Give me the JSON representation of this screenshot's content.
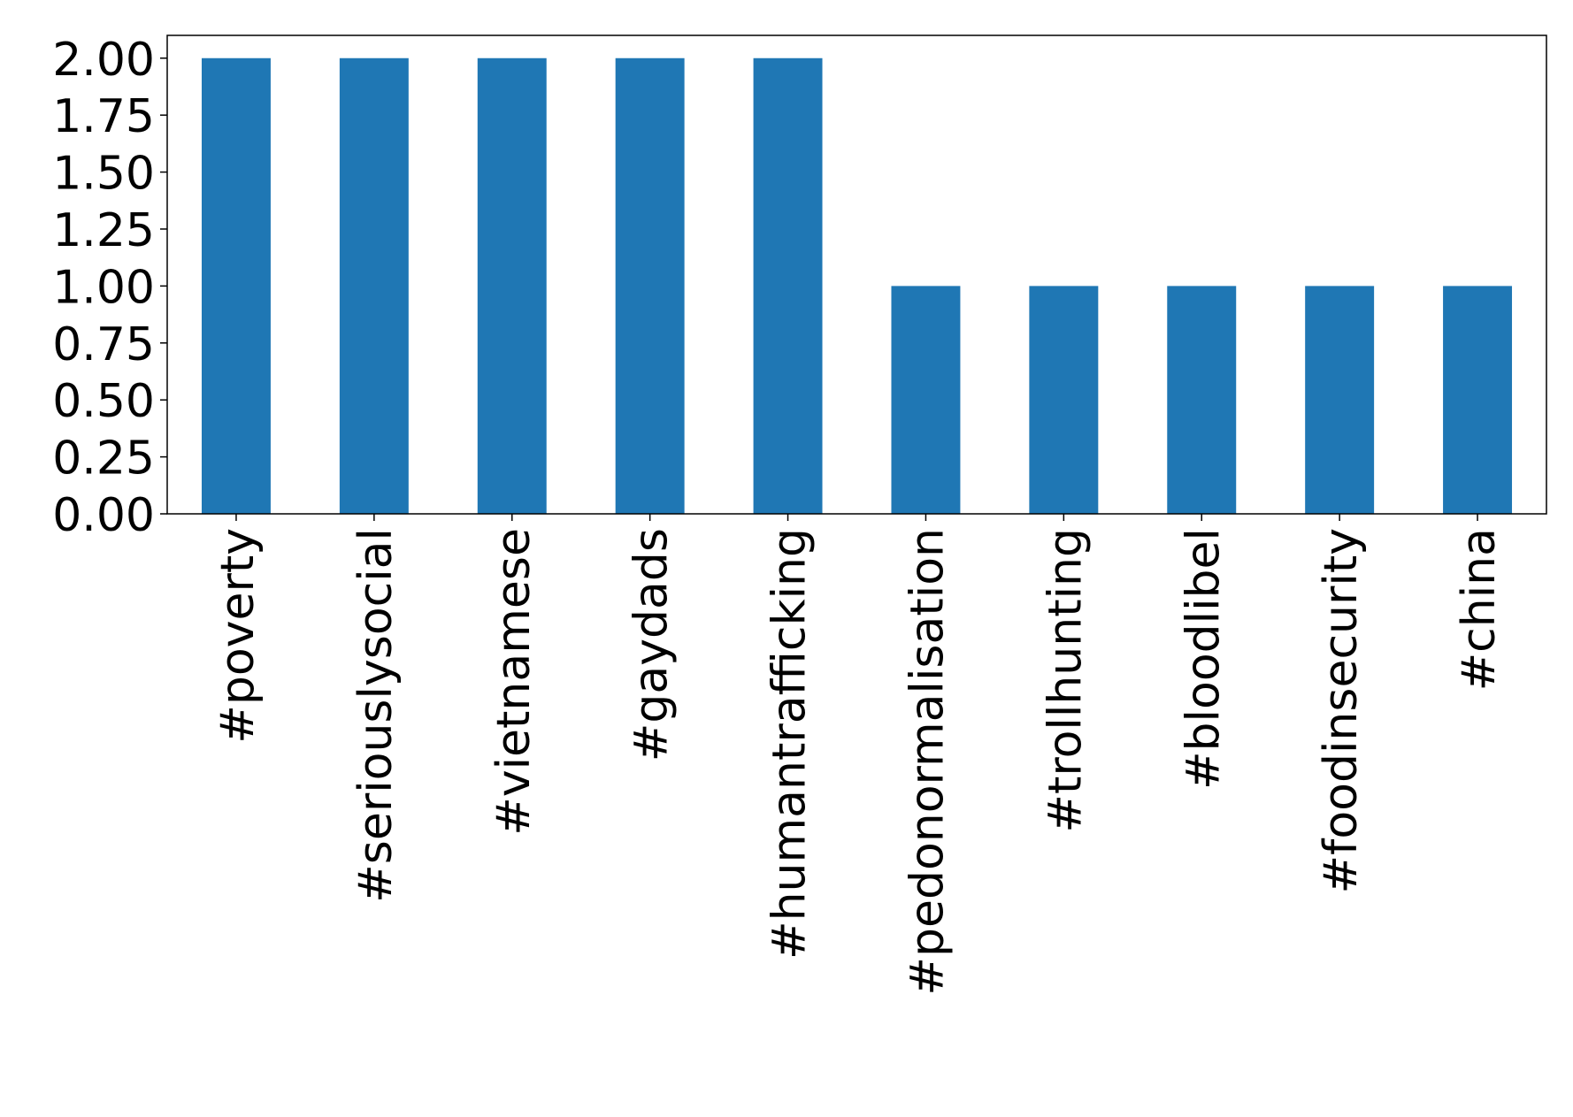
{
  "chart_data": {
    "type": "bar",
    "categories": [
      "#poverty",
      "#seriouslysocial",
      "#vietnamese",
      "#gaydads",
      "#humantrafficking",
      "#pedonormalisation",
      "#trollhunting",
      "#bloodlibel",
      "#foodinsecurity",
      "#china"
    ],
    "values": [
      2,
      2,
      2,
      2,
      2,
      1,
      1,
      1,
      1,
      1
    ],
    "color": "#1f77b4",
    "ylim": [
      0,
      2.1
    ],
    "yticks": [
      {
        "value": 0,
        "label": "0.00"
      },
      0.25,
      {
        "value": 0.5,
        "label": "0.50"
      },
      0.75,
      {
        "value": 1,
        "label": "1.00"
      },
      1.25,
      {
        "value": 1.5,
        "label": "1.50"
      },
      1.75,
      {
        "value": 2,
        "label": "2.00"
      }
    ],
    "grid": false
  }
}
